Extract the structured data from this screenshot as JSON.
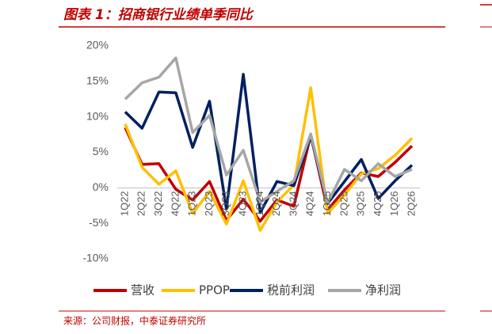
{
  "chart_data": {
    "type": "line",
    "title": "图表 1：招商银行业绩单季同比",
    "source": "来源：公司财报，中泰证券研究所",
    "categories": [
      "1Q22",
      "2Q22",
      "3Q22",
      "4Q22",
      "1Q23",
      "2Q23",
      "3Q23",
      "4Q23",
      "1Q24",
      "2Q24",
      "3Q24",
      "4Q24",
      "1Q25",
      "2Q25",
      "3Q25",
      "4Q25",
      "1Q26",
      "2Q26"
    ],
    "series": [
      {
        "name": "营收",
        "color": "#c00000",
        "values": [
          8.5,
          3.3,
          3.4,
          -0.2,
          -1.7,
          0.9,
          -4.6,
          -1.6,
          -4.7,
          -1.7,
          -2.6,
          7.5,
          -3.1,
          -0.3,
          2.1,
          1.6,
          3.6,
          5.9
        ]
      },
      {
        "name": "PPOP",
        "color": "#ffc000",
        "values": [
          9.0,
          2.9,
          0.5,
          2.4,
          -3.6,
          -0.5,
          -5.1,
          1.0,
          -6.0,
          -2.0,
          0.4,
          14.1,
          -3.6,
          -1.0,
          2.0,
          2.7,
          4.6,
          7.0
        ]
      },
      {
        "name": "税前利润",
        "color": "#002060",
        "values": [
          10.7,
          8.4,
          13.5,
          13.4,
          5.7,
          12.2,
          -3.0,
          16.0,
          -3.5,
          0.9,
          0.3,
          7.3,
          -2.2,
          0.9,
          4.0,
          -1.5,
          1.0,
          3.2
        ]
      },
      {
        "name": "净利润",
        "color": "#a6a6a6",
        "values": [
          12.5,
          14.8,
          15.6,
          18.3,
          7.8,
          10.2,
          1.8,
          5.3,
          -2.0,
          -0.5,
          1.0,
          7.6,
          -2.1,
          2.6,
          1.0,
          3.4,
          1.6,
          2.6
        ]
      }
    ],
    "ylim": [
      -10,
      20
    ],
    "yticks": [
      {
        "value": -10,
        "label": "-10%"
      },
      {
        "value": -5,
        "label": "-5%"
      },
      {
        "value": 0,
        "label": "0%"
      },
      {
        "value": 5,
        "label": "5%"
      },
      {
        "value": 10,
        "label": "10%"
      },
      {
        "value": 15,
        "label": "15%"
      },
      {
        "value": 20,
        "label": "20%"
      }
    ],
    "grid": false,
    "legend": "bottom"
  }
}
